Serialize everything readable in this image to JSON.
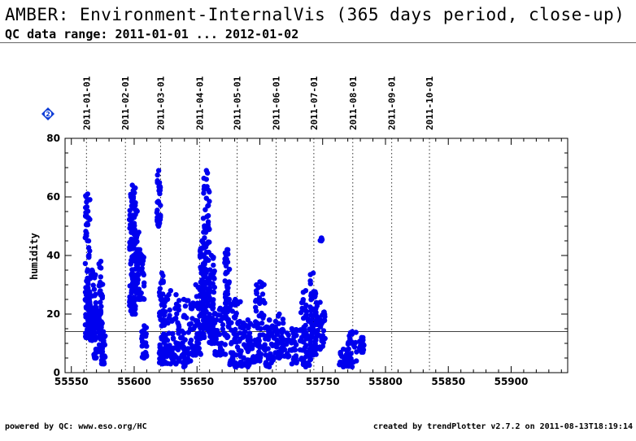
{
  "header": {
    "title": "AMBER: Environment-InternalVis (365 days period, close-up)",
    "subtitle": "QC data range: 2011-01-01 ... 2012-01-02"
  },
  "footer": {
    "left": "powered by QC: www.eso.org/HC",
    "right": "created by trendPlotter v2.7.2 on 2011-08-13T18:19:14"
  },
  "badge": {
    "label": "2",
    "color": "#0a3ad6"
  },
  "chart_data": {
    "type": "scatter",
    "xlabel": "",
    "ylabel": "humidity",
    "xlim": [
      55545,
      55945
    ],
    "ylim": [
      0,
      80
    ],
    "xticks": [
      55550,
      55600,
      55650,
      55700,
      55750,
      55800,
      55850,
      55900
    ],
    "yticks": [
      0,
      20,
      40,
      60,
      80
    ],
    "reference_line_y": 14,
    "point_color": "#0000ee",
    "month_markers": [
      {
        "label": "2011-01-01",
        "x": 55562
      },
      {
        "label": "2011-02-01",
        "x": 55593
      },
      {
        "label": "2011-03-01",
        "x": 55621
      },
      {
        "label": "2011-04-01",
        "x": 55652
      },
      {
        "label": "2011-05-01",
        "x": 55682
      },
      {
        "label": "2011-06-01",
        "x": 55713
      },
      {
        "label": "2011-07-01",
        "x": 55743
      },
      {
        "label": "2011-08-01",
        "x": 55774
      },
      {
        "label": "2011-09-01",
        "x": 55805
      },
      {
        "label": "2011-10-01",
        "x": 55835
      }
    ],
    "clusters": [
      {
        "x": [
          55561,
          55565
        ],
        "y": [
          12,
          61
        ]
      },
      {
        "x": [
          55563,
          55570
        ],
        "y": [
          11,
          35
        ]
      },
      {
        "x": [
          55566,
          55572
        ],
        "y": [
          15,
          22
        ]
      },
      {
        "x": [
          55568,
          55571
        ],
        "y": [
          5,
          8
        ]
      },
      {
        "x": [
          55572,
          55575
        ],
        "y": [
          7,
          38
        ]
      },
      {
        "x": [
          55574,
          55577
        ],
        "y": [
          3,
          14
        ]
      },
      {
        "x": [
          55596,
          55601
        ],
        "y": [
          20,
          64
        ]
      },
      {
        "x": [
          55598,
          55604
        ],
        "y": [
          25,
          58
        ]
      },
      {
        "x": [
          55601,
          55608
        ],
        "y": [
          25,
          42
        ]
      },
      {
        "x": [
          55606,
          55610
        ],
        "y": [
          5,
          16
        ]
      },
      {
        "x": [
          55618,
          55621
        ],
        "y": [
          50,
          69
        ]
      },
      {
        "x": [
          55620,
          55624
        ],
        "y": [
          3,
          34
        ]
      },
      {
        "x": [
          55624,
          55634
        ],
        "y": [
          3,
          28
        ]
      },
      {
        "x": [
          55634,
          55645
        ],
        "y": [
          2,
          25
        ]
      },
      {
        "x": [
          55645,
          55653
        ],
        "y": [
          6,
          30
        ]
      },
      {
        "x": [
          55652,
          55656
        ],
        "y": [
          12,
          45
        ]
      },
      {
        "x": [
          55655,
          55660
        ],
        "y": [
          15,
          69
        ]
      },
      {
        "x": [
          55659,
          55664
        ],
        "y": [
          10,
          40
        ]
      },
      {
        "x": [
          55664,
          55673
        ],
        "y": [
          6,
          22
        ]
      },
      {
        "x": [
          55672,
          55676
        ],
        "y": [
          12,
          42
        ]
      },
      {
        "x": [
          55676,
          55685
        ],
        "y": [
          2,
          25
        ]
      },
      {
        "x": [
          55685,
          55696
        ],
        "y": [
          2,
          18
        ]
      },
      {
        "x": [
          55696,
          55704
        ],
        "y": [
          4,
          31
        ]
      },
      {
        "x": [
          55704,
          55711
        ],
        "y": [
          2,
          18
        ]
      },
      {
        "x": [
          55711,
          55720
        ],
        "y": [
          5,
          20
        ]
      },
      {
        "x": [
          55721,
          55730
        ],
        "y": [
          3,
          15
        ]
      },
      {
        "x": [
          55732,
          55741
        ],
        "y": [
          2,
          28
        ]
      },
      {
        "x": [
          55740,
          55745
        ],
        "y": [
          6,
          34
        ]
      },
      {
        "x": [
          55744,
          55752
        ],
        "y": [
          8,
          24
        ]
      },
      {
        "x": [
          55748,
          55750
        ],
        "y": [
          45,
          46
        ]
      },
      {
        "x": [
          55763,
          55770
        ],
        "y": [
          2,
          8
        ]
      },
      {
        "x": [
          55770,
          55777
        ],
        "y": [
          2,
          14
        ]
      },
      {
        "x": [
          55779,
          55783
        ],
        "y": [
          7,
          12
        ]
      }
    ]
  }
}
